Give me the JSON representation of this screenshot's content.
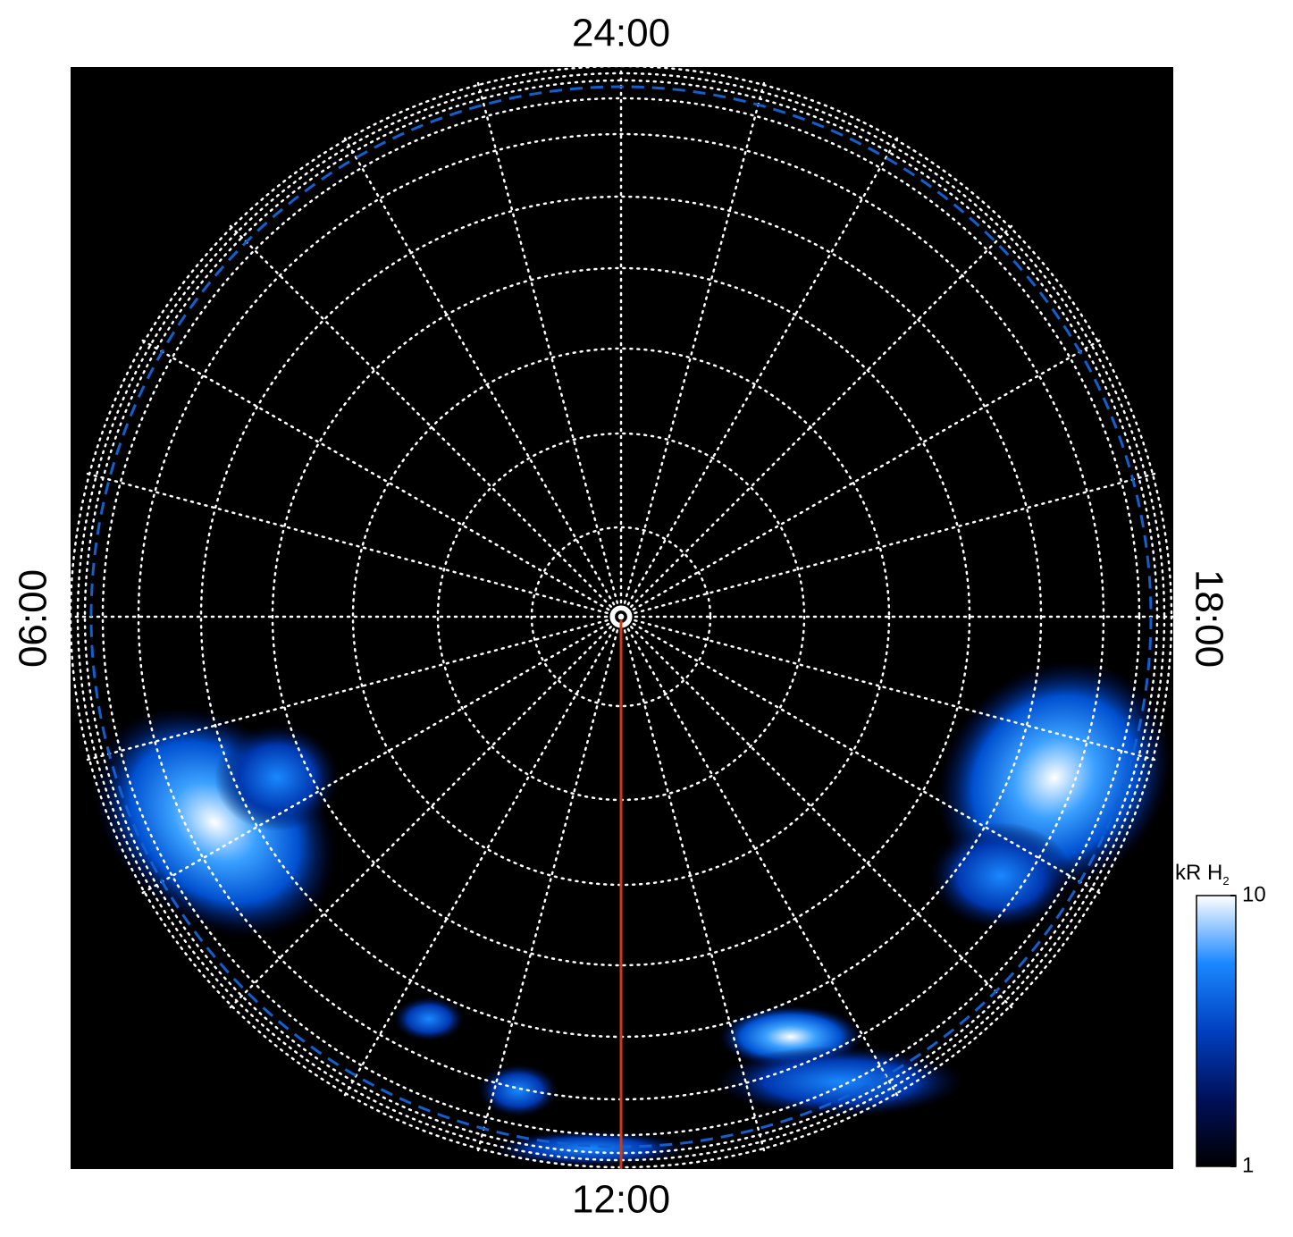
{
  "chart_data": {
    "type": "polar-image",
    "local_time_labels": {
      "top": "24:00",
      "left": "06:00",
      "right": "18:00",
      "bottom": "12:00"
    },
    "meridian_color": "#d03a10",
    "colorbar": {
      "label": "kR H",
      "label_subscript": "2",
      "scale": "log",
      "lim": [
        1,
        10
      ],
      "ticks": [
        1,
        10
      ],
      "colormap": [
        "#000000",
        "#00105a",
        "#0040c0",
        "#1a88ff",
        "#ffffff"
      ]
    }
  }
}
